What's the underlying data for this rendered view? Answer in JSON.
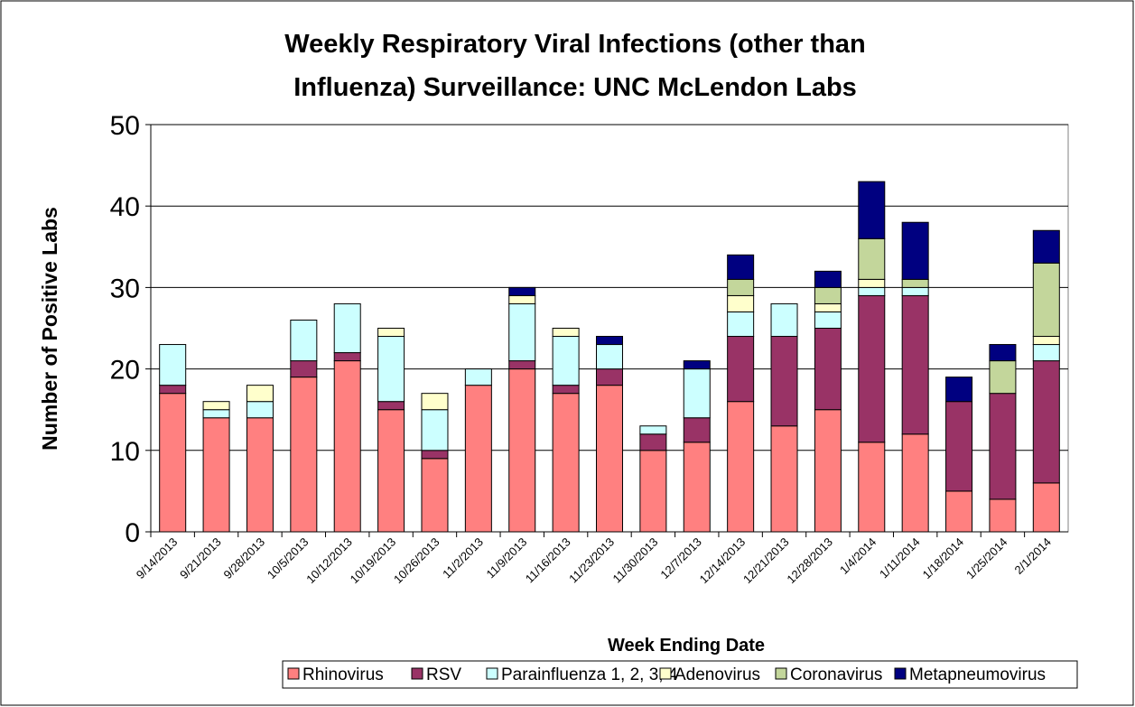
{
  "chart_data": {
    "type": "stacked_bar",
    "title": [
      "Weekly Respiratory Viral Infections (other than",
      "Influenza) Surveillance:  UNC McLendon Labs"
    ],
    "x_label": "Week Ending Date",
    "y_label": "Number of Positive Labs",
    "categories": [
      "9/14/2013",
      "9/21/2013",
      "9/28/2013",
      "10/5/2013",
      "10/12/2013",
      "10/19/2013",
      "10/26/2013",
      "11/2/2013",
      "11/9/2013",
      "11/16/2013",
      "11/23/2013",
      "11/30/2013",
      "12/7/2013",
      "12/14/2013",
      "12/21/2013",
      "12/28/2013",
      "1/4/2014",
      "1/11/2014",
      "1/18/2014",
      "1/25/2014",
      "2/1/2014"
    ],
    "series": [
      {
        "name": "Rhinovirus",
        "color": "#ff8080",
        "values": [
          17,
          14,
          14,
          19,
          21,
          15,
          9,
          18,
          20,
          17,
          18,
          10,
          11,
          16,
          13,
          15,
          11,
          12,
          5,
          4,
          6
        ]
      },
      {
        "name": "RSV",
        "color": "#993366",
        "values": [
          1,
          0,
          0,
          2,
          1,
          1,
          1,
          0,
          1,
          1,
          2,
          2,
          3,
          8,
          11,
          10,
          18,
          17,
          11,
          13,
          15
        ]
      },
      {
        "name": "Parainfluenza 1, 2, 3, 4",
        "color": "#ccffff",
        "values": [
          5,
          1,
          2,
          5,
          6,
          8,
          5,
          2,
          7,
          6,
          3,
          1,
          6,
          3,
          4,
          2,
          1,
          1,
          0,
          0,
          2
        ]
      },
      {
        "name": "Adenovirus",
        "color": "#ffffcc",
        "values": [
          0,
          1,
          2,
          0,
          0,
          1,
          2,
          0,
          1,
          1,
          0,
          0,
          0,
          2,
          0,
          1,
          1,
          0,
          0,
          0,
          1
        ]
      },
      {
        "name": "Coronavirus",
        "color": "#c3d69b",
        "values": [
          0,
          0,
          0,
          0,
          0,
          0,
          0,
          0,
          0,
          0,
          0,
          0,
          0,
          2,
          0,
          2,
          5,
          1,
          0,
          4,
          9
        ]
      },
      {
        "name": "Metapneumovirus",
        "color": "#000080",
        "values": [
          0,
          0,
          0,
          0,
          0,
          0,
          0,
          0,
          1,
          0,
          1,
          0,
          1,
          3,
          0,
          2,
          7,
          7,
          3,
          2,
          4
        ]
      }
    ],
    "ylim": [
      0,
      50
    ],
    "yticks": [
      0,
      10,
      20,
      30,
      40,
      50
    ],
    "grid": true,
    "legend": "bottom"
  }
}
